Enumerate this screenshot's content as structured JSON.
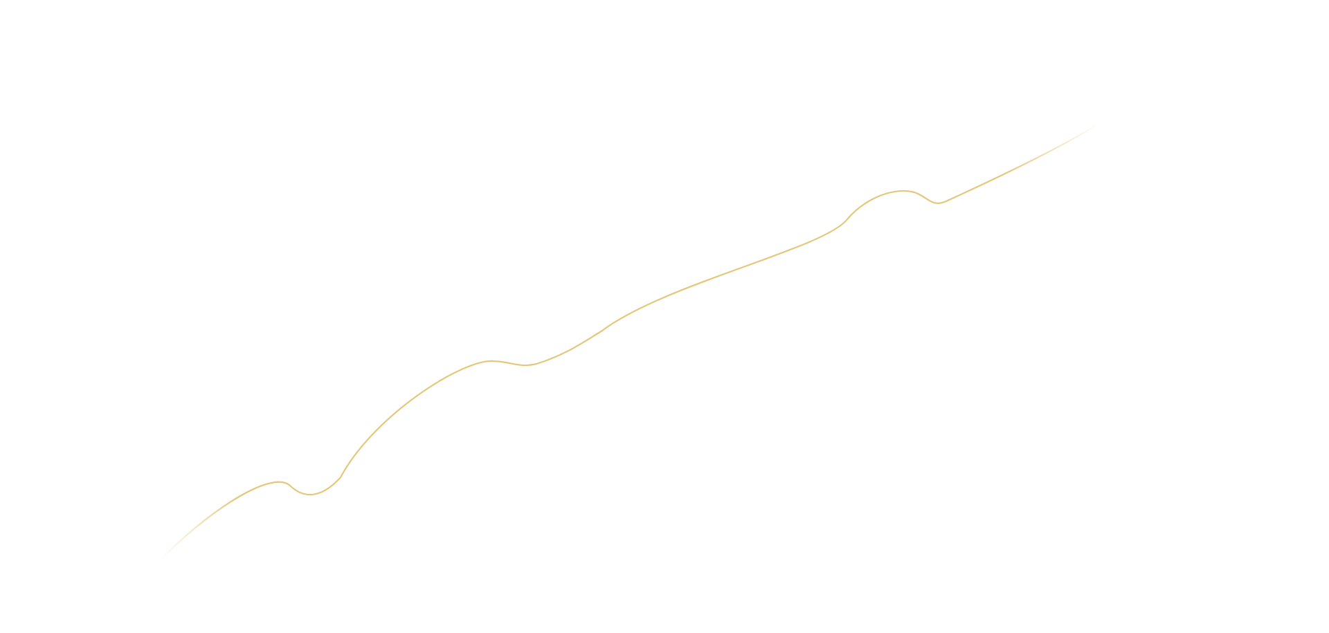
{
  "background_color": "#ffffff",
  "line": {
    "color": "#e3c77a",
    "style": "decorative curve fading at both ends"
  }
}
